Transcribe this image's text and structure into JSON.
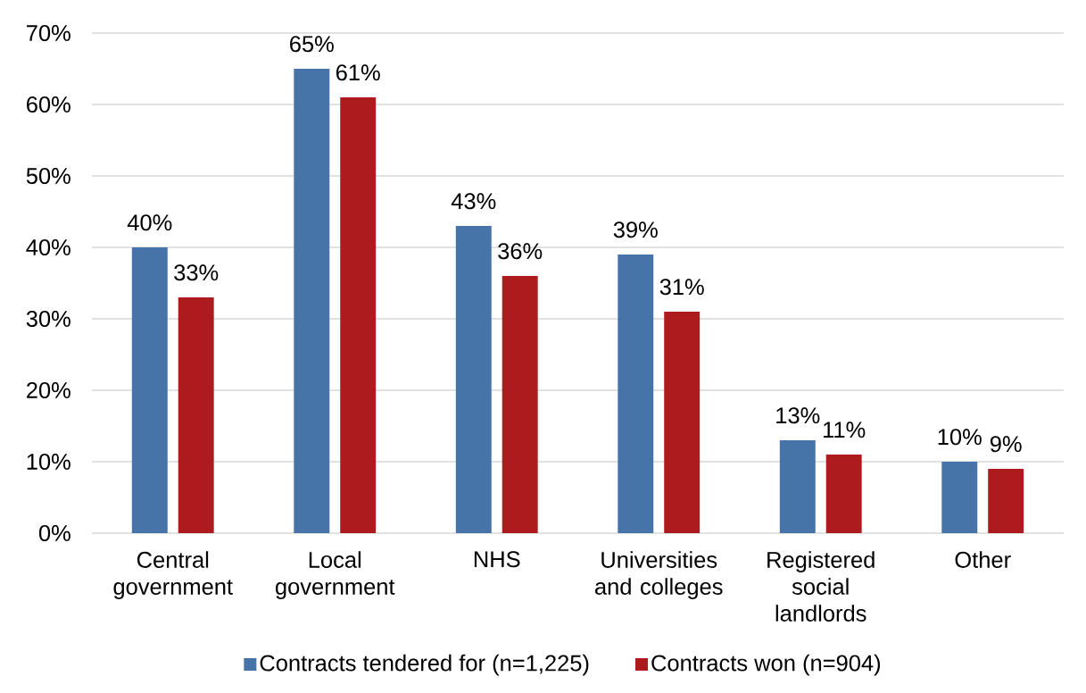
{
  "chart_data": {
    "type": "bar",
    "categories": [
      "Central government",
      "Local government",
      "NHS",
      "Universities and colleges",
      "Registered social landlords",
      "Other"
    ],
    "series": [
      {
        "name": "Contracts tendered for (n=1,225)",
        "color": "#4673a8",
        "values": [
          40,
          65,
          43,
          39,
          13,
          10
        ],
        "value_labels": [
          "40%",
          "65%",
          "43%",
          "39%",
          "13%",
          "10%"
        ]
      },
      {
        "name": "Contracts won (n=904)",
        "color": "#ae1b1f",
        "values": [
          33,
          61,
          36,
          31,
          11,
          9
        ],
        "value_labels": [
          "33%",
          "61%",
          "36%",
          "31%",
          "11%",
          "9%"
        ]
      }
    ],
    "ylim": [
      0,
      70
    ],
    "yticks": [
      {
        "value": 0,
        "label": "0%"
      },
      {
        "value": 10,
        "label": "10%"
      },
      {
        "value": 20,
        "label": "20%"
      },
      {
        "value": 30,
        "label": "30%"
      },
      {
        "value": 40,
        "label": "40%"
      },
      {
        "value": 50,
        "label": "50%"
      },
      {
        "value": 60,
        "label": "60%"
      },
      {
        "value": 70,
        "label": "70%"
      }
    ],
    "grid": "y",
    "legend": "bottom"
  }
}
